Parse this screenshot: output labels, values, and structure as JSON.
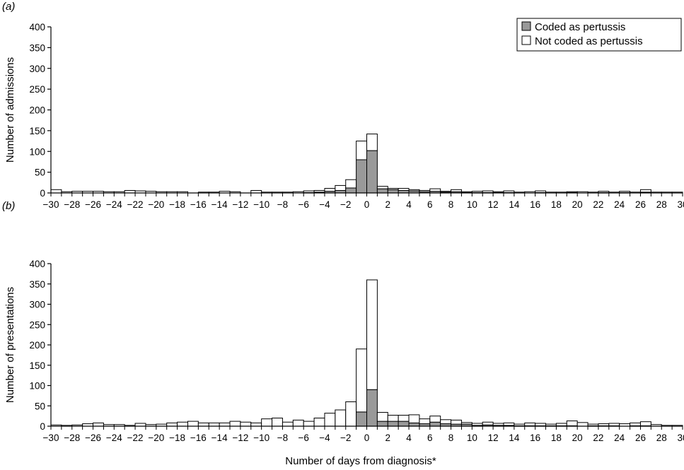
{
  "figure": {
    "xlabel": "Number of days from diagnosis*",
    "legend": {
      "placement": "top-right",
      "entries": [
        {
          "label": "Coded as pertussis",
          "color": "#999999"
        },
        {
          "label": "Not coded as pertussis",
          "color": "#ffffff"
        }
      ]
    }
  },
  "chart_data": [
    {
      "type": "bar",
      "panel_label": "(a)",
      "stacked": true,
      "ylabel": "Number of admissions",
      "ylim": [
        0,
        400
      ],
      "yticks": [
        0,
        50,
        100,
        150,
        200,
        250,
        300,
        350,
        400
      ],
      "xlim": [
        -30,
        30
      ],
      "xticks": [
        -30,
        -28,
        -26,
        -24,
        -22,
        -20,
        -18,
        -16,
        -14,
        -12,
        -10,
        -8,
        -6,
        -4,
        -2,
        0,
        2,
        4,
        6,
        8,
        10,
        12,
        14,
        16,
        18,
        20,
        22,
        24,
        26,
        28,
        30
      ],
      "xtick_labels": [
        "−30",
        "−28",
        "−26",
        "−24",
        "−22",
        "−20",
        "−18",
        "−16",
        "−14",
        "−12",
        "−10",
        "−8",
        "−6",
        "−4",
        "−2",
        "0",
        "2",
        "4",
        "6",
        "8",
        "10",
        "12",
        "14",
        "16",
        "18",
        "20",
        "22",
        "24",
        "26",
        "28",
        "30"
      ],
      "x": [
        -30,
        -29,
        -28,
        -27,
        -26,
        -25,
        -24,
        -23,
        -22,
        -21,
        -20,
        -19,
        -18,
        -17,
        -16,
        -15,
        -14,
        -13,
        -12,
        -11,
        -10,
        -9,
        -8,
        -7,
        -6,
        -5,
        -4,
        -3,
        -2,
        -1,
        0,
        1,
        2,
        3,
        4,
        5,
        6,
        7,
        8,
        9,
        10,
        11,
        12,
        13,
        14,
        15,
        16,
        17,
        18,
        19,
        20,
        21,
        22,
        23,
        24,
        25,
        26,
        27,
        28,
        29
      ],
      "series": [
        {
          "name": "Coded as pertussis",
          "color": "#999999",
          "values": [
            0,
            0,
            0,
            0,
            0,
            0,
            0,
            0,
            0,
            0,
            0,
            0,
            0,
            0,
            0,
            0,
            0,
            0,
            0,
            0,
            0,
            0,
            0,
            0,
            1,
            2,
            4,
            6,
            12,
            80,
            102,
            10,
            8,
            6,
            5,
            3,
            4,
            2,
            3,
            1,
            1,
            1,
            1,
            1,
            0,
            0,
            1,
            0,
            0,
            1,
            0,
            0,
            1,
            0,
            1,
            0,
            2,
            0,
            0,
            0
          ]
        },
        {
          "name": "Not coded as pertussis",
          "color": "#ffffff",
          "values": [
            8,
            3,
            4,
            4,
            4,
            3,
            3,
            6,
            5,
            4,
            3,
            3,
            3,
            0,
            2,
            2,
            4,
            3,
            0,
            6,
            2,
            2,
            2,
            3,
            4,
            4,
            7,
            12,
            20,
            45,
            40,
            6,
            3,
            5,
            3,
            3,
            6,
            2,
            5,
            2,
            3,
            4,
            2,
            4,
            2,
            3,
            4,
            2,
            2,
            2,
            3,
            2,
            3,
            2,
            3,
            2,
            6,
            2,
            2,
            2
          ]
        }
      ]
    },
    {
      "type": "bar",
      "panel_label": "(b)",
      "stacked": true,
      "ylabel": "Number of presentations",
      "ylim": [
        0,
        400
      ],
      "yticks": [
        0,
        50,
        100,
        150,
        200,
        250,
        300,
        350,
        400
      ],
      "xlim": [
        -30,
        30
      ],
      "xticks": [
        -30,
        -28,
        -26,
        -24,
        -22,
        -20,
        -18,
        -16,
        -14,
        -12,
        -10,
        -8,
        -6,
        -4,
        -2,
        0,
        2,
        4,
        6,
        8,
        10,
        12,
        14,
        16,
        18,
        20,
        22,
        24,
        26,
        28,
        30
      ],
      "xtick_labels": [
        "−30",
        "−28",
        "−26",
        "−24",
        "−22",
        "−20",
        "−18",
        "−16",
        "−14",
        "−12",
        "−10",
        "−8",
        "−6",
        "−4",
        "−2",
        "0",
        "2",
        "4",
        "6",
        "8",
        "10",
        "12",
        "14",
        "16",
        "18",
        "20",
        "22",
        "24",
        "26",
        "28",
        "30"
      ],
      "x": [
        -30,
        -29,
        -28,
        -27,
        -26,
        -25,
        -24,
        -23,
        -22,
        -21,
        -20,
        -19,
        -18,
        -17,
        -16,
        -15,
        -14,
        -13,
        -12,
        -11,
        -10,
        -9,
        -8,
        -7,
        -6,
        -5,
        -4,
        -3,
        -2,
        -1,
        0,
        1,
        2,
        3,
        4,
        5,
        6,
        7,
        8,
        9,
        10,
        11,
        12,
        13,
        14,
        15,
        16,
        17,
        18,
        19,
        20,
        21,
        22,
        23,
        24,
        25,
        26,
        27,
        28,
        29
      ],
      "series": [
        {
          "name": "Coded as pertussis",
          "color": "#999999",
          "values": [
            0,
            0,
            0,
            0,
            0,
            0,
            0,
            0,
            0,
            0,
            0,
            0,
            0,
            0,
            0,
            0,
            0,
            0,
            0,
            0,
            0,
            0,
            0,
            0,
            0,
            0,
            0,
            0,
            0,
            35,
            90,
            12,
            12,
            12,
            8,
            6,
            10,
            6,
            5,
            5,
            2,
            3,
            2,
            2,
            1,
            1,
            1,
            1,
            1,
            1,
            0,
            1,
            1,
            1,
            0,
            1,
            1,
            0,
            0,
            0
          ]
        },
        {
          "name": "Not coded as pertussis",
          "color": "#ffffff",
          "values": [
            3,
            2,
            3,
            6,
            8,
            4,
            4,
            2,
            7,
            4,
            5,
            8,
            10,
            12,
            8,
            8,
            8,
            12,
            10,
            8,
            18,
            20,
            10,
            15,
            12,
            20,
            32,
            40,
            60,
            155,
            270,
            22,
            15,
            15,
            20,
            12,
            15,
            10,
            10,
            4,
            5,
            7,
            5,
            6,
            4,
            7,
            6,
            4,
            6,
            12,
            9,
            4,
            5,
            6,
            6,
            7,
            10,
            4,
            2,
            2
          ]
        }
      ]
    }
  ]
}
